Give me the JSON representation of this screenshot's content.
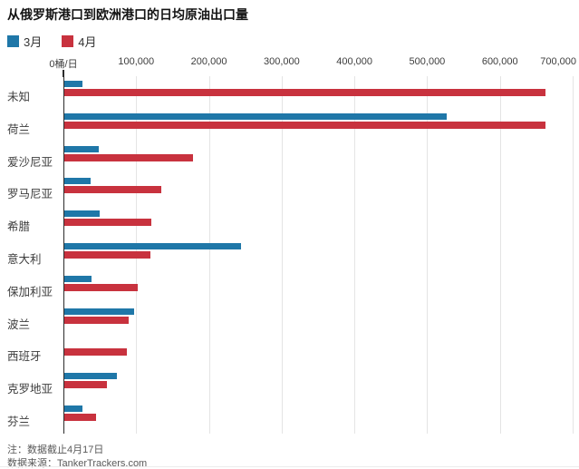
{
  "title": "从俄罗斯港口到欧洲港口的日均原油出口量",
  "legend": [
    {
      "label": "3月",
      "color": "#1f77a8"
    },
    {
      "label": "4月",
      "color": "#c8323e"
    }
  ],
  "chart_data": {
    "type": "bar",
    "orientation": "horizontal",
    "title": "从俄罗斯港口到欧洲港口的日均原油出口量",
    "categories": [
      "未知",
      "荷兰",
      "爱沙尼亚",
      "罗马尼亚",
      "希腊",
      "意大利",
      "保加利亚",
      "波兰",
      "西班牙",
      "克罗地亚",
      "芬兰"
    ],
    "series": [
      {
        "name": "3月",
        "color": "#1f77a8",
        "values": [
          25000,
          525000,
          47000,
          36000,
          49000,
          243000,
          37000,
          96000,
          0,
          72000,
          25000
        ]
      },
      {
        "name": "4月",
        "color": "#c8323e",
        "values": [
          662000,
          662000,
          177000,
          133000,
          120000,
          118000,
          101000,
          88000,
          86000,
          58000,
          44000
        ]
      }
    ],
    "x_axis": {
      "range": [
        0,
        700000
      ],
      "ticks": [
        0,
        100000,
        200000,
        300000,
        400000,
        500000,
        600000,
        700000
      ],
      "tick_labels": [
        "0桶/日",
        "100,000",
        "200,000",
        "300,000",
        "400,000",
        "500,000",
        "600,000",
        "700,000"
      ],
      "unit": "桶/日"
    },
    "grid": true,
    "legend_position": "top"
  },
  "footer": {
    "note": "注：数据截止4月17日",
    "source": "数据来源：TankerTrackers.com"
  }
}
